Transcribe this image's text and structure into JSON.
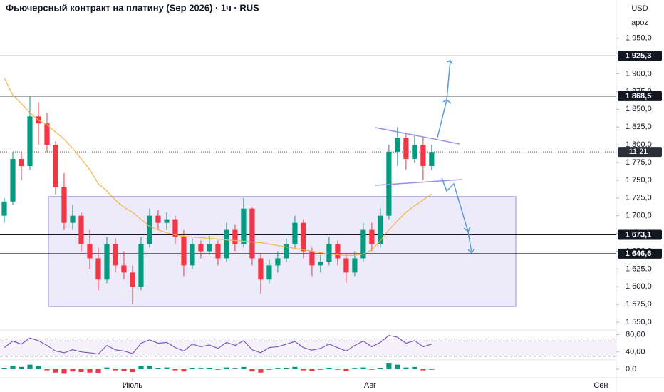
{
  "chart_data": {
    "type": "candlestick",
    "title": "Фьючерсный контракт на платину (Sep 2026) · 1ч · RUS",
    "currency": "USD",
    "scale_label": "apoz",
    "colors": {
      "up": "#089981",
      "down": "#f23645",
      "ma": "#f7b24a",
      "rsi": "#7e57c2",
      "box": "#9c8fe0"
    },
    "candles": [
      {
        "open": 1700,
        "high": 1725,
        "low": 1690,
        "close": 1720
      },
      {
        "open": 1720,
        "high": 1790,
        "low": 1715,
        "close": 1780
      },
      {
        "open": 1780,
        "high": 1790,
        "low": 1750,
        "close": 1770
      },
      {
        "open": 1770,
        "high": 1868,
        "low": 1765,
        "close": 1840
      },
      {
        "open": 1840,
        "high": 1860,
        "low": 1800,
        "close": 1830
      },
      {
        "open": 1830,
        "high": 1845,
        "low": 1790,
        "close": 1800
      },
      {
        "open": 1800,
        "high": 1805,
        "low": 1730,
        "close": 1740
      },
      {
        "open": 1740,
        "high": 1760,
        "low": 1680,
        "close": 1690
      },
      {
        "open": 1690,
        "high": 1715,
        "low": 1680,
        "close": 1700
      },
      {
        "open": 1700,
        "high": 1705,
        "low": 1650,
        "close": 1660
      },
      {
        "open": 1660,
        "high": 1680,
        "low": 1625,
        "close": 1640
      },
      {
        "open": 1640,
        "high": 1655,
        "low": 1595,
        "close": 1610
      },
      {
        "open": 1610,
        "high": 1670,
        "low": 1605,
        "close": 1660
      },
      {
        "open": 1660,
        "high": 1668,
        "low": 1620,
        "close": 1630
      },
      {
        "open": 1630,
        "high": 1650,
        "low": 1610,
        "close": 1620
      },
      {
        "open": 1620,
        "high": 1630,
        "low": 1575,
        "close": 1600
      },
      {
        "open": 1600,
        "high": 1670,
        "low": 1595,
        "close": 1660
      },
      {
        "open": 1660,
        "high": 1710,
        "low": 1655,
        "close": 1700
      },
      {
        "open": 1700,
        "high": 1708,
        "low": 1680,
        "close": 1690
      },
      {
        "open": 1690,
        "high": 1705,
        "low": 1680,
        "close": 1695
      },
      {
        "open": 1695,
        "high": 1700,
        "low": 1660,
        "close": 1670
      },
      {
        "open": 1670,
        "high": 1680,
        "low": 1615,
        "close": 1630
      },
      {
        "open": 1630,
        "high": 1668,
        "low": 1625,
        "close": 1660
      },
      {
        "open": 1660,
        "high": 1665,
        "low": 1640,
        "close": 1650
      },
      {
        "open": 1650,
        "high": 1672,
        "low": 1645,
        "close": 1660
      },
      {
        "open": 1660,
        "high": 1665,
        "low": 1630,
        "close": 1640
      },
      {
        "open": 1640,
        "high": 1690,
        "low": 1635,
        "close": 1680
      },
      {
        "open": 1680,
        "high": 1688,
        "low": 1650,
        "close": 1660
      },
      {
        "open": 1660,
        "high": 1725,
        "low": 1655,
        "close": 1710
      },
      {
        "open": 1710,
        "high": 1712,
        "low": 1630,
        "close": 1640
      },
      {
        "open": 1640,
        "high": 1648,
        "low": 1590,
        "close": 1610
      },
      {
        "open": 1610,
        "high": 1638,
        "low": 1605,
        "close": 1630
      },
      {
        "open": 1630,
        "high": 1650,
        "low": 1620,
        "close": 1640
      },
      {
        "open": 1640,
        "high": 1668,
        "low": 1635,
        "close": 1660
      },
      {
        "open": 1660,
        "high": 1700,
        "low": 1655,
        "close": 1690
      },
      {
        "open": 1690,
        "high": 1695,
        "low": 1640,
        "close": 1650
      },
      {
        "open": 1650,
        "high": 1655,
        "low": 1615,
        "close": 1630
      },
      {
        "open": 1630,
        "high": 1645,
        "low": 1620,
        "close": 1635
      },
      {
        "open": 1635,
        "high": 1670,
        "low": 1630,
        "close": 1660
      },
      {
        "open": 1660,
        "high": 1665,
        "low": 1630,
        "close": 1640
      },
      {
        "open": 1640,
        "high": 1648,
        "low": 1605,
        "close": 1620
      },
      {
        "open": 1620,
        "high": 1650,
        "low": 1615,
        "close": 1640
      },
      {
        "open": 1640,
        "high": 1690,
        "low": 1635,
        "close": 1680
      },
      {
        "open": 1680,
        "high": 1690,
        "low": 1650,
        "close": 1660
      },
      {
        "open": 1660,
        "high": 1710,
        "low": 1655,
        "close": 1700
      },
      {
        "open": 1700,
        "high": 1800,
        "low": 1695,
        "close": 1790
      },
      {
        "open": 1790,
        "high": 1825,
        "low": 1770,
        "close": 1810
      },
      {
        "open": 1810,
        "high": 1815,
        "low": 1765,
        "close": 1780
      },
      {
        "open": 1780,
        "high": 1815,
        "low": 1775,
        "close": 1800
      },
      {
        "open": 1800,
        "high": 1810,
        "low": 1750,
        "close": 1770
      },
      {
        "open": 1770,
        "high": 1800,
        "low": 1765,
        "close": 1790
      }
    ],
    "ma": [
      1894,
      1870,
      1858,
      1845,
      1835,
      1828,
      1818,
      1808,
      1795,
      1780,
      1765,
      1745,
      1735,
      1722,
      1712,
      1705,
      1695,
      1685,
      1680,
      1676,
      1673,
      1671,
      1670,
      1669,
      1668,
      1667,
      1666,
      1665,
      1664,
      1663,
      1662,
      1660,
      1658,
      1656,
      1654,
      1652,
      1650,
      1648,
      1646,
      1645,
      1644,
      1644,
      1646,
      1652,
      1665,
      1680,
      1693,
      1705,
      1714,
      1722,
      1731
    ],
    "rsi": [
      50,
      65,
      58,
      72,
      66,
      55,
      42,
      38,
      45,
      40,
      38,
      35,
      55,
      45,
      42,
      36,
      60,
      68,
      60,
      62,
      50,
      42,
      58,
      52,
      56,
      48,
      62,
      55,
      66,
      45,
      38,
      50,
      52,
      58,
      64,
      50,
      44,
      48,
      58,
      50,
      42,
      55,
      65,
      52,
      62,
      78,
      74,
      60,
      66,
      52,
      58
    ],
    "macd": [
      2,
      6,
      4,
      8,
      5,
      -2,
      -6,
      -8,
      -4,
      -5,
      -6,
      -7,
      3,
      -2,
      -3,
      -5,
      5,
      6,
      2,
      3,
      -2,
      -4,
      2,
      1,
      2,
      -1,
      3,
      1,
      4,
      -4,
      -6,
      -1,
      1,
      2,
      4,
      -2,
      -3,
      -1,
      2,
      -1,
      -3,
      1,
      3,
      -1,
      2,
      10,
      8,
      3,
      4,
      -2,
      -1
    ],
    "xlim": [
      -0.5,
      71.6
    ],
    "xticks": [
      {
        "value": 15,
        "label": "Июль"
      },
      {
        "value": 42.8,
        "label": "Авг"
      },
      {
        "value": 69.8,
        "label": "Сен"
      }
    ],
    "ylim": [
      1540,
      2004
    ],
    "yticks": [
      {
        "value": 1550,
        "label": "1 550,0"
      },
      {
        "value": 1575,
        "label": "1 575,0"
      },
      {
        "value": 1600,
        "label": "1 600,0"
      },
      {
        "value": 1625,
        "label": "1 625,0"
      },
      {
        "value": 1650,
        "label": "1 650,0"
      },
      {
        "value": 1675,
        "label": "1 675,0"
      },
      {
        "value": 1700,
        "label": "1 700,0"
      },
      {
        "value": 1725,
        "label": "1 725,0"
      },
      {
        "value": 1750,
        "label": "1 750,0"
      },
      {
        "value": 1775,
        "label": "1 775,0"
      },
      {
        "value": 1800,
        "label": "1 800,0"
      },
      {
        "value": 1825,
        "label": "1 825,0"
      },
      {
        "value": 1850,
        "label": "1 850,0"
      },
      {
        "value": 1875,
        "label": "1 875,0"
      },
      {
        "value": 1900,
        "label": "1 900,0"
      },
      {
        "value": 1950,
        "label": "1 950,0"
      }
    ],
    "levels": [
      {
        "value": 1925.3,
        "label": "1 925,3"
      },
      {
        "value": 1868.5,
        "label": "1 868,5"
      },
      {
        "value": 1673.1,
        "label": "1 673,1"
      },
      {
        "value": 1646.6,
        "label": "1 646,6"
      }
    ],
    "current": {
      "value": 1790,
      "label": "11:21"
    },
    "rsi_lim": [
      23,
      89
    ],
    "rsi_ticks": [
      {
        "value": 80,
        "label": "80,00"
      },
      {
        "value": 40,
        "label": "40,00"
      }
    ],
    "rsi_bands": [
      70,
      30
    ],
    "macd_lim": [
      -15,
      15
    ],
    "macd_ticks": [
      {
        "value": 0,
        "label": "0,0"
      }
    ]
  }
}
